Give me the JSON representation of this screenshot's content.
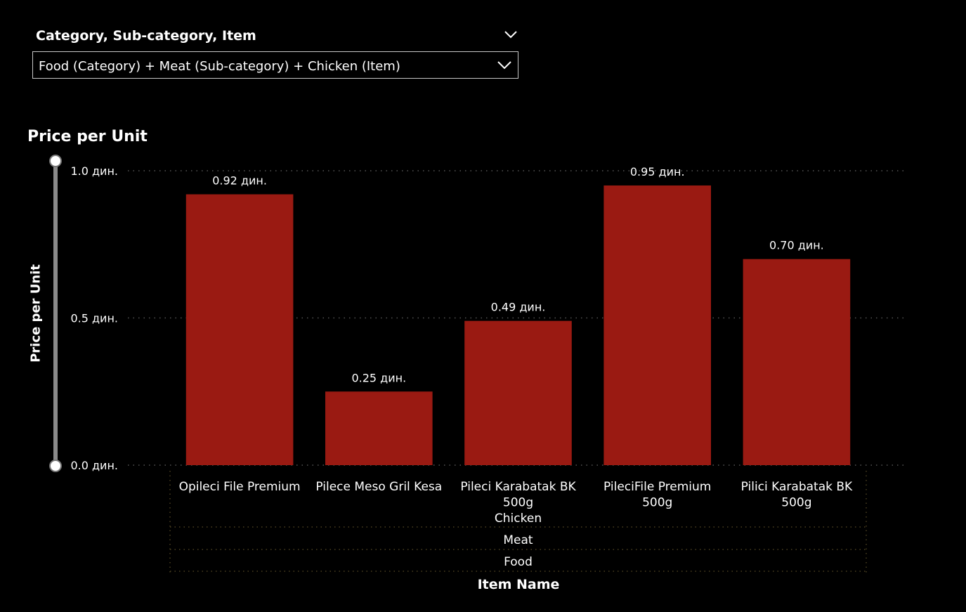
{
  "slicer": {
    "title": "Category, Sub-category, Item",
    "value": "Food (Category) + Meat (Sub-category) + Chicken (Item)"
  },
  "chart_data": {
    "type": "bar",
    "title": "Price per Unit",
    "xlabel": "Item Name",
    "ylabel": "Price per Unit",
    "ylim": [
      0,
      1.0
    ],
    "yticks": [
      {
        "value": 0.0,
        "label": "0.0 дин."
      },
      {
        "value": 0.5,
        "label": "0.5 дин."
      },
      {
        "value": 1.0,
        "label": "1.0 дин."
      }
    ],
    "categories": [
      "Opileci File Premium",
      "Pilece Meso Gril Kesa",
      "Pileci Karabatak BK 500g",
      "PileciFile Premium 500g",
      "Pilici Karabatak BK 500g"
    ],
    "category_lines": [
      [
        "Opileci File Premium"
      ],
      [
        "Pilece Meso Gril Kesa"
      ],
      [
        "Pileci Karabatak BK",
        "500g"
      ],
      [
        "PileciFile Premium",
        "500g"
      ],
      [
        "Pilici Karabatak BK",
        "500g"
      ]
    ],
    "values": [
      0.92,
      0.25,
      0.49,
      0.95,
      0.7
    ],
    "data_labels": [
      "0.92 дин.",
      "0.25 дин.",
      "0.49 дин.",
      "0.95 дин.",
      "0.70 дин."
    ],
    "hierarchy": {
      "item": "Chicken",
      "subcategory": "Meat",
      "category": "Food"
    },
    "grid": true,
    "bar_color": "#9a1a12",
    "grid_color": "#555555"
  }
}
